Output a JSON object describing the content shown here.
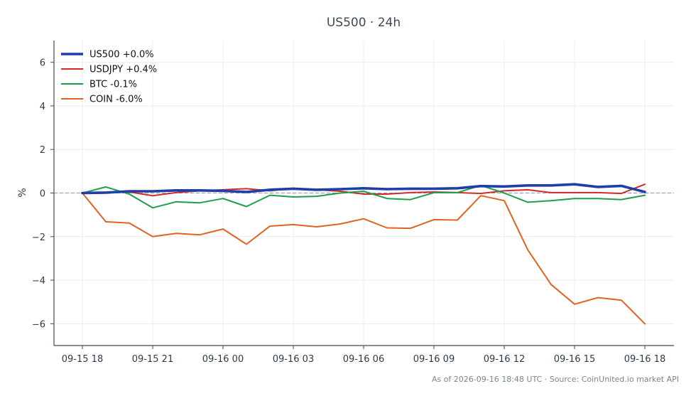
{
  "chart_data": {
    "type": "line",
    "title": "US500 · 24h",
    "ylabel": "%",
    "ylim": [
      -7,
      7
    ],
    "yticks": [
      -6,
      -4,
      -2,
      0,
      2,
      4,
      6
    ],
    "ytick_labels": [
      "−6",
      "−4",
      "−2",
      "0",
      "2",
      "4",
      "6"
    ],
    "x": [
      "09-15 18:00",
      "09-15 19:00",
      "09-15 20:00",
      "09-15 21:00",
      "09-15 22:00",
      "09-15 23:00",
      "09-16 00:00",
      "09-16 01:00",
      "09-16 02:00",
      "09-16 03:00",
      "09-16 04:00",
      "09-16 05:00",
      "09-16 06:00",
      "09-16 07:00",
      "09-16 08:00",
      "09-16 09:00",
      "09-16 10:00",
      "09-16 11:00",
      "09-16 12:00",
      "09-16 13:00",
      "09-16 14:00",
      "09-16 15:00",
      "09-16 16:00",
      "09-16 17:00",
      "09-16 18:00"
    ],
    "xticks": [
      "09-15 18:00",
      "09-15 21:00",
      "09-16 00:00",
      "09-16 03:00",
      "09-16 06:00",
      "09-16 09:00",
      "09-16 12:00",
      "09-16 15:00",
      "09-16 18:00"
    ],
    "xtick_labels": [
      "09-15 18",
      "09-15 21",
      "09-16 00",
      "09-16 03",
      "09-16 06",
      "09-16 09",
      "09-16 12",
      "09-16 15",
      "09-16 18"
    ],
    "zero_line": true,
    "grid": true,
    "legend_position": "top-left",
    "series": [
      {
        "name": "US500 +0.0%",
        "color": "#1f3fa8",
        "emphasis": true,
        "values": [
          0.0,
          0.02,
          0.08,
          0.08,
          0.12,
          0.12,
          0.1,
          0.05,
          0.15,
          0.2,
          0.15,
          0.18,
          0.22,
          0.18,
          0.2,
          0.2,
          0.22,
          0.32,
          0.3,
          0.35,
          0.35,
          0.4,
          0.28,
          0.33,
          0.05
        ]
      },
      {
        "name": "USDJPY +0.4%",
        "color": "#d62a2a",
        "values": [
          0.0,
          0.02,
          0.05,
          -0.12,
          0.02,
          0.1,
          0.15,
          0.2,
          0.1,
          0.22,
          0.15,
          0.08,
          -0.05,
          -0.05,
          0.02,
          0.05,
          0.02,
          -0.02,
          0.1,
          0.15,
          0.02,
          0.02,
          0.02,
          -0.02,
          0.4
        ]
      },
      {
        "name": "BTC -0.1%",
        "color": "#1f9e4a",
        "values": [
          0.0,
          0.28,
          -0.05,
          -0.68,
          -0.4,
          -0.45,
          -0.25,
          -0.62,
          -0.1,
          -0.18,
          -0.15,
          0.0,
          0.08,
          -0.25,
          -0.3,
          0.02,
          0.02,
          0.35,
          0.0,
          -0.42,
          -0.35,
          -0.25,
          -0.25,
          -0.3,
          -0.1
        ]
      },
      {
        "name": "COIN -6.0%",
        "color": "#e0631f",
        "values": [
          0.0,
          -1.32,
          -1.38,
          -2.0,
          -1.85,
          -1.92,
          -1.65,
          -2.35,
          -1.52,
          -1.45,
          -1.55,
          -1.42,
          -1.18,
          -1.6,
          -1.62,
          -1.22,
          -1.24,
          -0.12,
          -0.35,
          -2.6,
          -4.2,
          -5.1,
          -4.8,
          -4.92,
          -6.0
        ]
      }
    ]
  },
  "footer": "As of 2026-09-16 18:48 UTC · Source: CoinUnited.io market API"
}
